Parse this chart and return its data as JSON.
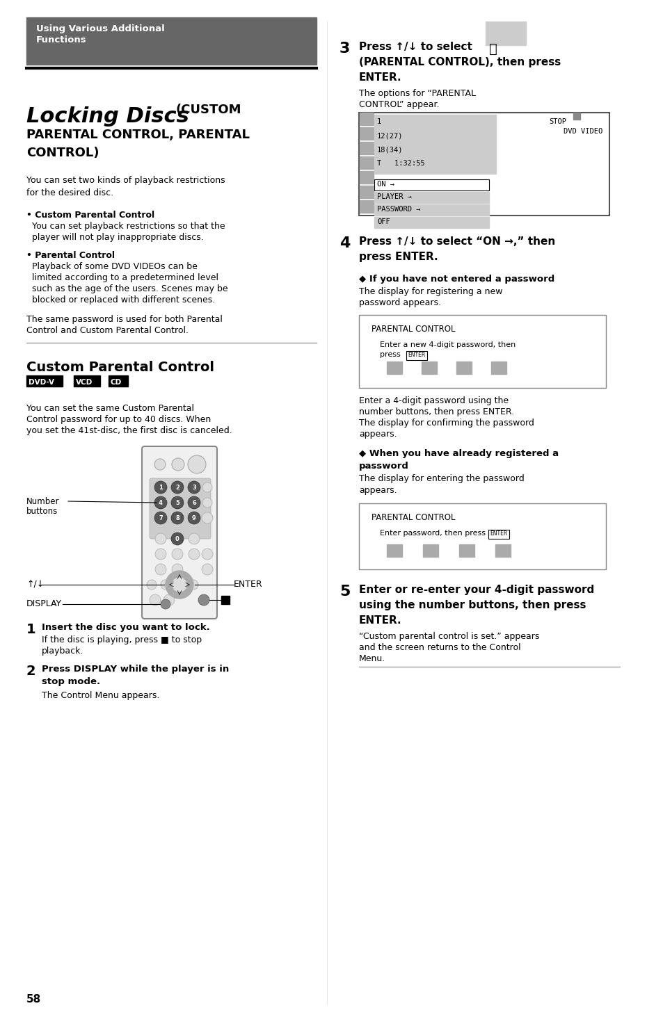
{
  "page_bg": "#ffffff",
  "page_num": "58",
  "header_bg": "#666666",
  "header_text_line1": "Using Various Additional",
  "header_text_line2": "Functions",
  "header_text_color": "#ffffff",
  "body_intro": "You can set two kinds of playback restrictions\nfor the desired disc.",
  "bullet1_head": "• Custom Parental Control",
  "bullet1_body1": "  You can set playback restrictions so that the",
  "bullet1_body2": "  player will not play inappropriate discs.",
  "bullet2_head": "• Parental Control",
  "bullet2_body1": "  Playback of some DVD VIDEOs can be",
  "bullet2_body2": "  limited according to a predetermined level",
  "bullet2_body3": "  such as the age of the users. Scenes may be",
  "bullet2_body4": "  blocked or replaced with different scenes.",
  "same_password1": "The same password is used for both Parental",
  "same_password2": "Control and Custom Parental Control.",
  "section2_title": "Custom Parental Control",
  "disc_labels": [
    "DVD-V",
    "VCD",
    "CD"
  ],
  "body2_line1": "You can set the same Custom Parental",
  "body2_line2": "Control password for up to 40 discs. When",
  "body2_line3": "you set the 41st-disc, the first disc is canceled.",
  "step1_num": "1",
  "step1_bold": "Insert the disc you want to lock.",
  "step1_body1": "If the disc is playing, press ■ to stop",
  "step1_body2": "playback.",
  "step2_num": "2",
  "step2_bold1": "Press DISPLAY while the player is in",
  "step2_bold2": "stop mode.",
  "step2_body": "The Control Menu appears.",
  "step3_num": "3",
  "step3_bold1": "Press ↑/↓ to select",
  "step3_bold2": "(PARENTAL CONTROL), then press",
  "step3_bold3": "ENTER.",
  "step3_body1": "The options for “PARENTAL",
  "step3_body2": "CONTROL” appear.",
  "step4_num": "4",
  "step4_bold1": "Press ↑/↓ to select “ON →,” then",
  "step4_bold2": "press ENTER.",
  "step4_sub1_bold": "◆ If you have not entered a password",
  "step4_sub1_body1": "The display for registering a new",
  "step4_sub1_body2": "password appears.",
  "step4_sub2_bold1": "◆ When you have already registered a",
  "step4_sub2_bold2": "password",
  "step4_sub2_body": "The display for entering the password\nappears.",
  "step5_num": "5",
  "step5_bold1": "Enter or re-enter your 4-digit password",
  "step5_bold2": "using the number buttons, then press",
  "step5_bold3": "ENTER.",
  "step5_body1": "“Custom parental control is set.” appears",
  "step5_body2": "and the screen returns to the Control",
  "step5_body3": "Menu.",
  "label_number_buttons_1": "Number",
  "label_number_buttons_2": "buttons",
  "label_updown": "↑/↓",
  "label_enter": "ENTER",
  "label_display": "DISPLAY",
  "screen1_lines": [
    "1",
    "12(27)",
    "18(34)",
    "T   1:32:55"
  ],
  "screen1_right_top": "STOP",
  "screen1_right_bot": "DVD VIDEO",
  "screen1_menu": [
    "ON →",
    "PLAYER →",
    "PASSWORD →",
    "OFF"
  ],
  "screen2_title": "PARENTAL CONTROL",
  "screen2_body1": "Enter a new 4-digit password, then",
  "screen2_body2": "press ENTER.",
  "enter_text1": "Enter a 4-digit password using the",
  "enter_text2": "number buttons, then press ENTER.",
  "enter_text3": "The display for confirming the password",
  "enter_text4": "appears.",
  "screen3_title": "PARENTAL CONTROL",
  "screen3_body": "Enter password, then press ENTER."
}
